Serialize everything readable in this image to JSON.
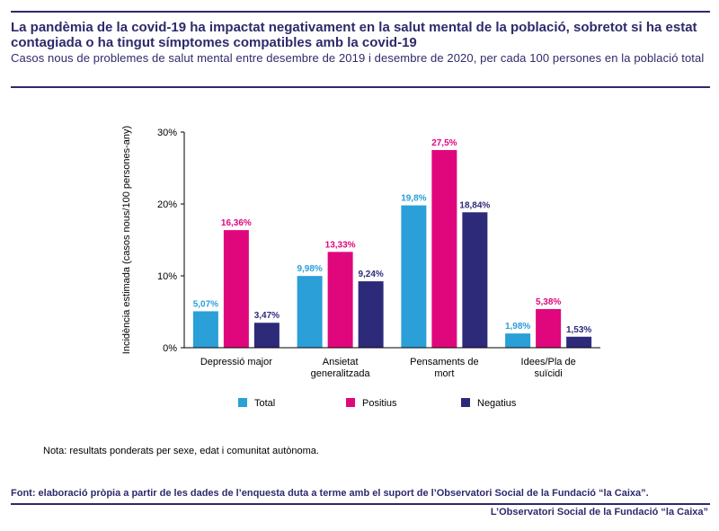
{
  "header": {
    "title": "La pandèmia de la covid-19 ha impactat negativament en la salut mental de la població, sobretot si ha estat contagiada o ha tingut símptomes compatibles amb la covid-19",
    "subtitle": "Casos nous de problemes de salut mental entre desembre de 2019 i desembre de 2020, per cada 100 persones en la població total"
  },
  "chart_data": {
    "type": "bar",
    "categories": [
      [
        "Depressió major"
      ],
      [
        "Ansietat",
        "generalitzada"
      ],
      [
        "Pensaments de",
        "mort"
      ],
      [
        "Idees/Pla de",
        "suïcidi"
      ]
    ],
    "series": [
      {
        "name": "Total",
        "color": "#2a9fd8",
        "values": [
          5.07,
          9.98,
          19.8,
          1.98
        ],
        "labels": [
          "5,07%",
          "9,98%",
          "19,8%",
          "1,98%"
        ]
      },
      {
        "name": "Positius",
        "color": "#e0077d",
        "values": [
          16.36,
          13.33,
          27.5,
          5.38
        ],
        "labels": [
          "16,36%",
          "13,33%",
          "27,5%",
          "5,38%"
        ]
      },
      {
        "name": "Negatius",
        "color": "#2e2a7a",
        "values": [
          3.47,
          9.24,
          18.84,
          1.53
        ],
        "labels": [
          "3,47%",
          "9,24%",
          "18,84%",
          "1,53%"
        ]
      }
    ],
    "ylabel": "Incidència estimada (casos nous/100 persones-any)",
    "yticks": [
      0,
      10,
      20,
      30
    ],
    "ytick_labels": [
      "0%",
      "10%",
      "20%",
      "30%"
    ],
    "ylim": [
      0,
      30
    ],
    "grid": false,
    "legend_position": "bottom"
  },
  "note": "Nota: resultats ponderats per sexe, edat i comunitat autònoma.",
  "source": "Font: elaboració pròpia a partir de les dades de l’enquesta duta a terme amb el suport de l’Observatori Social de la Fundació “la Caixa”.",
  "footer": "L’Observatori Social de la Fundació “la Caixa”"
}
